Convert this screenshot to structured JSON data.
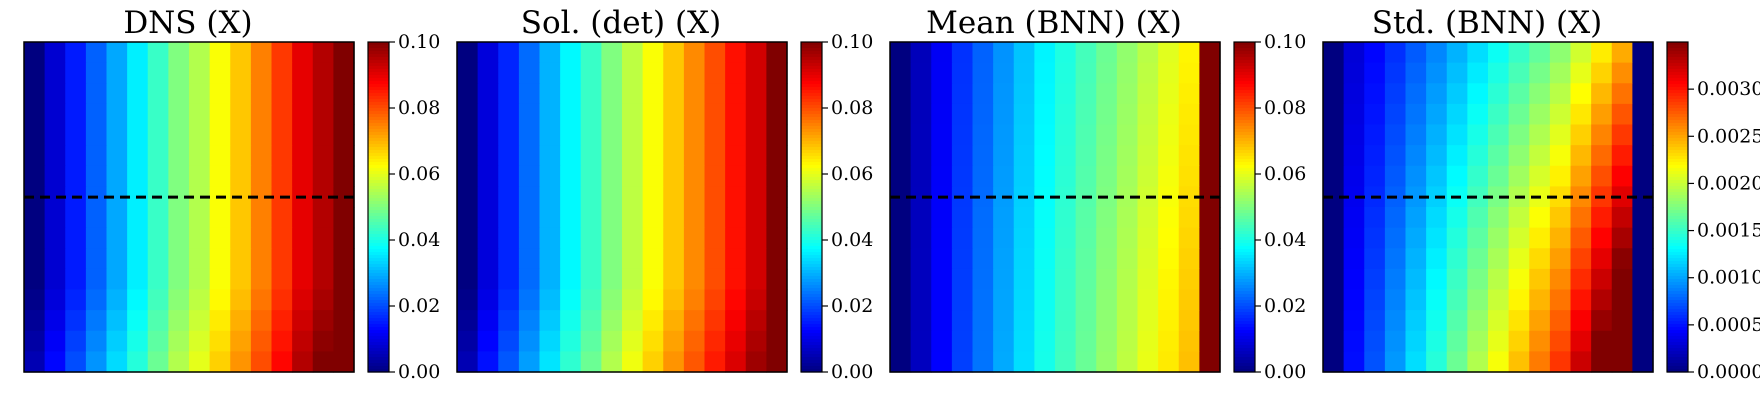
{
  "figure": {
    "colormap": "jet",
    "dashed_line_color": "#000000",
    "frame_color": "#000000"
  },
  "chart_data": [
    {
      "type": "heatmap",
      "title": "DNS (X)",
      "value_range": [
        0.0,
        0.1
      ],
      "colorbar_ticks": [
        "0.00",
        "0.02",
        "0.04",
        "0.06",
        "0.08",
        "0.10"
      ],
      "colorbar_tick_values": [
        0.0,
        0.02,
        0.04,
        0.06,
        0.08,
        0.1
      ],
      "grid_cells": [
        16,
        16
      ],
      "dashed_line_row_fraction_from_bottom": 0.53,
      "pattern": "increases left to right; near-bottom rows slightly higher",
      "column_values": [
        0.0,
        0.008,
        0.015,
        0.022,
        0.029,
        0.036,
        0.043,
        0.05,
        0.055,
        0.062,
        0.068,
        0.075,
        0.082,
        0.09,
        0.095,
        0.1
      ]
    },
    {
      "type": "heatmap",
      "title": "Sol. (det) (X)",
      "value_range": [
        0.0,
        0.1
      ],
      "colorbar_ticks": [
        "0.00",
        "0.02",
        "0.04",
        "0.06",
        "0.08",
        "0.10"
      ],
      "colorbar_tick_values": [
        0.0,
        0.02,
        0.04,
        0.06,
        0.08,
        0.1
      ],
      "grid_cells": [
        16,
        16
      ],
      "dashed_line_row_fraction_from_bottom": null,
      "pattern": "increases left to right; near-bottom rows slightly higher",
      "column_values": [
        0.0,
        0.009,
        0.016,
        0.023,
        0.03,
        0.037,
        0.043,
        0.05,
        0.056,
        0.062,
        0.068,
        0.074,
        0.08,
        0.086,
        0.092,
        0.1
      ]
    },
    {
      "type": "heatmap",
      "title": "Mean (BNN) (X)",
      "value_range": [
        0.0,
        0.1
      ],
      "colorbar_ticks": [
        "0.00",
        "0.02",
        "0.04",
        "0.06",
        "0.08",
        "0.10"
      ],
      "colorbar_tick_values": [
        0.0,
        0.02,
        0.04,
        0.06,
        0.08,
        0.1
      ],
      "grid_cells": [
        16,
        16
      ],
      "dashed_line_row_fraction_from_bottom": 0.53,
      "pattern": "increases left to right; last column saturates at 0.1",
      "column_values": [
        0.0,
        0.006,
        0.012,
        0.018,
        0.023,
        0.028,
        0.033,
        0.038,
        0.042,
        0.046,
        0.05,
        0.054,
        0.058,
        0.062,
        0.066,
        0.1
      ]
    },
    {
      "type": "heatmap",
      "title": "Std. (BNN) (X)",
      "value_range": [
        0.0,
        0.0035
      ],
      "colorbar_ticks": [
        "0.0000",
        "0.0005",
        "0.0010",
        "0.0015",
        "0.0020",
        "0.0025",
        "0.0030"
      ],
      "colorbar_tick_values": [
        0.0,
        0.0005,
        0.001,
        0.0015,
        0.002,
        0.0025,
        0.003
      ],
      "grid_cells": [
        16,
        16
      ],
      "dashed_line_row_fraction_from_bottom": 0.53,
      "pattern": "increases left to right and downward; first and last columns near zero",
      "column_values": [
        0.0,
        0.0004,
        0.0006,
        0.0008,
        0.001,
        0.0012,
        0.0014,
        0.0016,
        0.0018,
        0.002,
        0.0022,
        0.0024,
        0.0027,
        0.003,
        0.0033,
        0.0
      ]
    }
  ]
}
